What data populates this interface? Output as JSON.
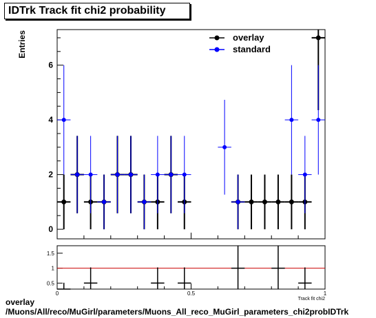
{
  "title": "IDTrk Track fit chi2 probability",
  "footer": {
    "line1": "overlay",
    "line2": "/Muons/All/reco/MuGirl/parameters/Muons_All_reco_MuGirl_parameters_chi2probIDTrk"
  },
  "colors": {
    "overlay": "#000000",
    "standard": "#0000ff",
    "ratio_line": "#cc0000"
  },
  "chart_data": [
    {
      "type": "scatter",
      "ylabel": "Entries",
      "xlim": [
        0,
        1
      ],
      "ylim": [
        -0.35,
        7.3
      ],
      "yticks": [
        0,
        2,
        4,
        6
      ],
      "ytick_labels": [
        "0",
        "2",
        "4",
        "6"
      ],
      "legend": {
        "position": "top-right",
        "entries": [
          "overlay",
          "standard"
        ]
      },
      "bin_width": 0.05,
      "x": [
        0.025,
        0.075,
        0.125,
        0.175,
        0.225,
        0.275,
        0.325,
        0.375,
        0.425,
        0.475,
        0.525,
        0.575,
        0.625,
        0.675,
        0.725,
        0.775,
        0.825,
        0.875,
        0.925,
        0.975
      ],
      "series": [
        {
          "name": "overlay",
          "values": [
            1,
            2,
            1,
            1,
            2,
            2,
            1,
            1,
            2,
            1,
            null,
            null,
            null,
            1,
            1,
            1,
            1,
            1,
            1,
            7
          ]
        },
        {
          "name": "standard",
          "values": [
            4,
            2,
            2,
            1,
            2,
            2,
            1,
            2,
            2,
            2,
            null,
            null,
            3,
            1,
            null,
            null,
            null,
            4,
            2,
            4
          ]
        }
      ]
    },
    {
      "type": "scatter",
      "xlabel": "Track fit chi2",
      "xlim": [
        0,
        1
      ],
      "ylim": [
        0.3,
        1.75
      ],
      "yticks": [
        0.5,
        1,
        1.5
      ],
      "ytick_labels": [
        "0.5",
        "1",
        "1.5"
      ],
      "xticks": [
        0,
        0.5,
        1
      ],
      "xtick_labels": [
        "0",
        "0.5",
        "1"
      ],
      "reference_line": 1,
      "x": [
        0.025,
        0.125,
        0.375,
        0.475,
        0.675,
        0.825,
        0.925
      ],
      "values": [
        0.25,
        0.5,
        0.5,
        0.5,
        1,
        1,
        0.5
      ]
    }
  ]
}
